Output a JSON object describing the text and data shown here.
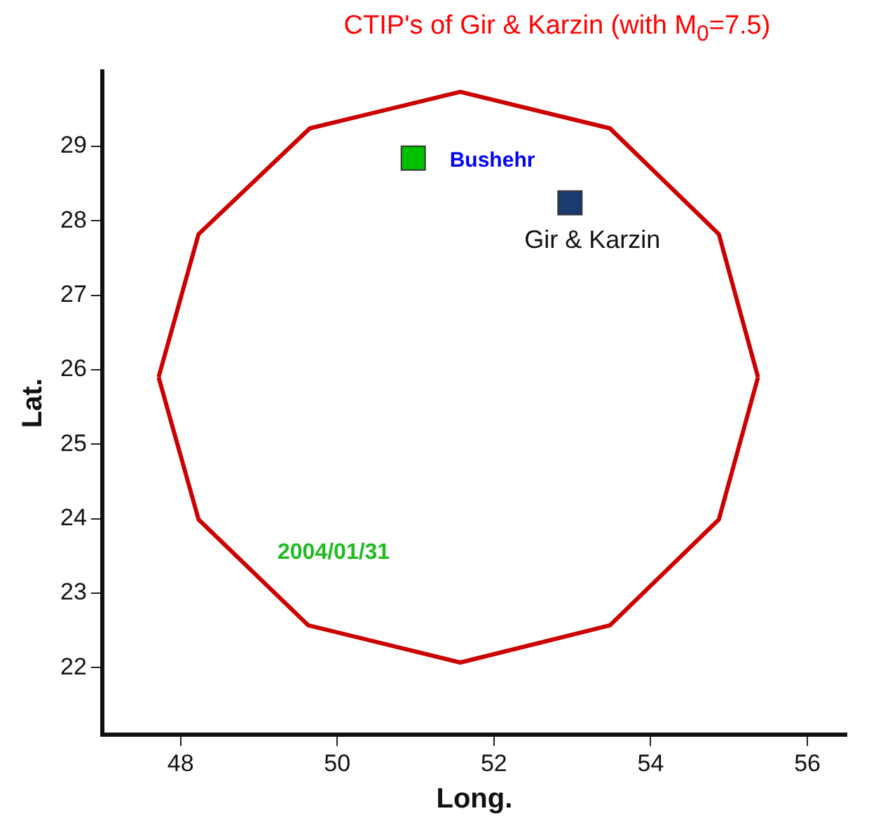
{
  "chart_data": {
    "type": "line",
    "title": "CTIP's of Gir & Karzin (with M$_{0}$=7.5)",
    "xlabel": "Long.",
    "ylabel": "Lat.",
    "series": [
      {
        "color": "#cc0000",
        "x": [
          47.72,
          48.23,
          49.65,
          51.57,
          53.48,
          54.87,
          55.37
        ],
        "values": [
          25.9,
          27.82,
          29.24,
          29.73,
          29.24,
          27.82,
          25.9
        ],
        "marker": "none"
      },
      {
        "color": "#cc0000",
        "x": [
          47.72,
          48.23,
          49.63,
          51.57,
          53.48,
          54.87,
          55.37
        ],
        "values": [
          25.9,
          23.99,
          22.57,
          22.07,
          22.57,
          23.99,
          25.9
        ],
        "marker": "none"
      },
      {
        "type": "scatter",
        "name": "Bushehr",
        "color": "#00c000",
        "x": [
          50.97
        ],
        "values": [
          28.84
        ],
        "marker": "square"
      },
      {
        "type": "scatter",
        "name": "Gir & Karzin",
        "color": "#1a3a70",
        "x": [
          52.97
        ],
        "values": [
          28.24
        ],
        "marker": "square"
      }
    ],
    "annotations": [
      "2004/01/31"
    ],
    "xlim": [
      47,
      56.5
    ],
    "xticks": [
      48,
      50,
      52,
      54,
      56
    ],
    "ylim": [
      21.1,
      30
    ],
    "yticks": [
      22,
      23,
      24,
      25,
      26,
      27,
      28,
      29
    ],
    "grid": false,
    "legend": false
  }
}
